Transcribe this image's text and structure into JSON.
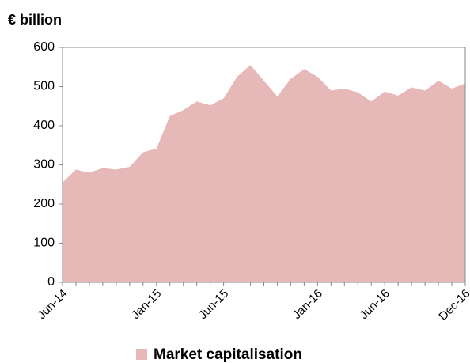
{
  "chart_data": {
    "type": "area",
    "title": "€ billion",
    "categories": [
      "Jun-14",
      null,
      null,
      null,
      null,
      null,
      null,
      "Jan-15",
      null,
      null,
      null,
      null,
      "Jun-15",
      null,
      null,
      null,
      null,
      null,
      null,
      "Jan-16",
      null,
      null,
      null,
      null,
      "Jun-16",
      null,
      null,
      null,
      null,
      null,
      "Dec-16"
    ],
    "series": [
      {
        "name": "Market capitalisation",
        "color": "#e6b8b7",
        "values": [
          255,
          288,
          280,
          292,
          288,
          295,
          332,
          342,
          425,
          440,
          462,
          452,
          470,
          525,
          555,
          515,
          475,
          520,
          545,
          525,
          490,
          495,
          485,
          462,
          487,
          477,
          498,
          490,
          515,
          495,
          508
        ]
      }
    ],
    "ylim": [
      0,
      600
    ],
    "yticks": [
      0,
      100,
      200,
      300,
      400,
      500,
      600
    ],
    "grid": false,
    "legend": "bottom"
  }
}
